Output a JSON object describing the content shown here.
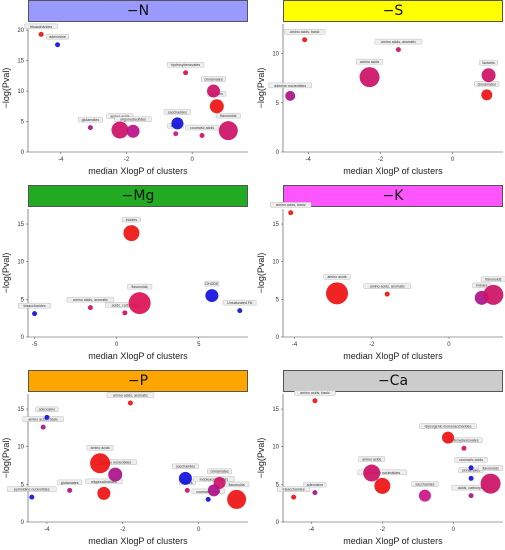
{
  "chart_data": [
    {
      "type": "scatter",
      "title": "−N",
      "strip_color": "#9999ff",
      "xlabel": "median XlogP of clusters",
      "ylabel": "−log(Pval)",
      "xlim": [
        -5.0,
        1.7
      ],
      "ylim": [
        0,
        21
      ],
      "xticks": [
        -4,
        -2,
        0
      ],
      "yticks": [
        0,
        5,
        10,
        15,
        20
      ],
      "points": [
        {
          "x": -4.6,
          "y": 19.3,
          "r": 2.5,
          "color": "#ee1111",
          "label": "trisaccharides"
        },
        {
          "x": -4.1,
          "y": 17.6,
          "r": 2.5,
          "color": "#1111dd",
          "label": "adenosine"
        },
        {
          "x": -0.2,
          "y": 13.0,
          "r": 2.5,
          "color": "#dd1144",
          "label": "hydroxybenzoates"
        },
        {
          "x": 0.65,
          "y": 10.0,
          "r": 6.5,
          "color": "#cc1166",
          "label": "cinnamates"
        },
        {
          "x": 0.75,
          "y": 7.5,
          "r": 7,
          "color": "#ee1111",
          "label": "lactams"
        },
        {
          "x": -3.1,
          "y": 4.0,
          "r": 2.5,
          "color": "#aa1188",
          "label": "glutamates"
        },
        {
          "x": -2.2,
          "y": 3.6,
          "r": 8.5,
          "color": "#cc1166",
          "label": "amino acids"
        },
        {
          "x": -1.8,
          "y": 3.4,
          "r": 6.5,
          "color": "#bb1188",
          "label": "oligonucleotides"
        },
        {
          "x": -0.45,
          "y": 4.7,
          "r": 6,
          "color": "#1111dd",
          "label": "saccharides"
        },
        {
          "x": -0.5,
          "y": 3.0,
          "r": 2.5,
          "color": "#cc1188",
          "label": "azoles"
        },
        {
          "x": 0.3,
          "y": 2.7,
          "r": 2.5,
          "color": "#cc1166",
          "label": "coumaric acids"
        },
        {
          "x": 1.1,
          "y": 3.5,
          "r": 9.5,
          "color": "#cc1166",
          "label": "flavonoids"
        }
      ]
    },
    {
      "type": "scatter",
      "title": "−S",
      "strip_color": "#ffff00",
      "xlabel": "median XlogP of clusters",
      "ylabel": "−log(Pval)",
      "xlim": [
        -4.7,
        1.4
      ],
      "ylim": [
        0,
        13
      ],
      "xticks": [
        -4,
        -2,
        0
      ],
      "yticks": [
        0,
        5,
        10
      ],
      "points": [
        {
          "x": -4.1,
          "y": 11.4,
          "r": 2.5,
          "color": "#ee1111",
          "label": "amino acids, basic"
        },
        {
          "x": -1.5,
          "y": 10.4,
          "r": 2.5,
          "color": "#cc1166",
          "label": "amino acids, aromatic"
        },
        {
          "x": -4.5,
          "y": 5.7,
          "r": 5,
          "color": "#aa1188",
          "label": "adenine nucleotides"
        },
        {
          "x": -2.3,
          "y": 7.6,
          "r": 10,
          "color": "#cc1166",
          "label": "amino acids"
        },
        {
          "x": 1.0,
          "y": 7.8,
          "r": 7,
          "color": "#cc1166",
          "label": "lactams"
        },
        {
          "x": 0.95,
          "y": 5.8,
          "r": 5.5,
          "color": "#ee1111",
          "label": "cinnamates"
        }
      ]
    },
    {
      "type": "scatter",
      "title": "−Mg",
      "strip_color": "#22aa22",
      "xlabel": "median XlogP of clusters",
      "ylabel": "−log(Pval)",
      "xlim": [
        -5.4,
        8.0
      ],
      "ylim": [
        0,
        17
      ],
      "xticks": [
        -5,
        0,
        5
      ],
      "yticks": [
        0,
        5,
        10,
        15
      ],
      "points": [
        {
          "x": 0.9,
          "y": 13.8,
          "r": 8,
          "color": "#ee1111",
          "label": "indoles"
        },
        {
          "x": 5.8,
          "y": 5.5,
          "r": 6.5,
          "color": "#1111dd",
          "label": "DHODE"
        },
        {
          "x": 7.5,
          "y": 3.5,
          "r": 2.5,
          "color": "#1111dd",
          "label": "Unsaturated FA"
        },
        {
          "x": -5.0,
          "y": 3.1,
          "r": 2.5,
          "color": "#1111dd",
          "label": "trisaccharides"
        },
        {
          "x": -1.6,
          "y": 3.9,
          "r": 2.5,
          "color": "#cc1166",
          "label": "amino acids, aromatic"
        },
        {
          "x": 1.4,
          "y": 4.5,
          "r": 11,
          "color": "#dd1155",
          "label": "flavonoids"
        },
        {
          "x": 0.5,
          "y": 3.2,
          "r": 2.5,
          "color": "#cc1166",
          "label": "acids, carboxylic"
        }
      ]
    },
    {
      "type": "scatter",
      "title": "−K",
      "strip_color": "#ff55ff",
      "xlabel": "median XlogP of clusters",
      "ylabel": "−log(Pval)",
      "xlim": [
        -4.3,
        1.4
      ],
      "ylim": [
        0,
        17
      ],
      "xticks": [
        -4,
        -2,
        0
      ],
      "yticks": [
        0,
        5,
        10,
        15
      ],
      "points": [
        {
          "x": -4.1,
          "y": 16.5,
          "r": 2.5,
          "color": "#ee1111",
          "label": "amino acids, basic"
        },
        {
          "x": -2.9,
          "y": 5.8,
          "r": 11,
          "color": "#ee1111",
          "label": "amino acids"
        },
        {
          "x": -1.6,
          "y": 5.7,
          "r": 2.5,
          "color": "#ee1111",
          "label": "amino acids, aromatic"
        },
        {
          "x": 0.85,
          "y": 5.2,
          "r": 7,
          "color": "#aa1188",
          "label": "indoles"
        },
        {
          "x": 1.15,
          "y": 5.6,
          "r": 10,
          "color": "#cc1166",
          "label": "flavonoids"
        }
      ]
    },
    {
      "type": "scatter",
      "title": "−P",
      "strip_color": "#ffa500",
      "xlabel": "median XlogP of clusters",
      "ylabel": "−log(Pval)",
      "xlim": [
        -4.5,
        1.3
      ],
      "ylim": [
        0,
        17
      ],
      "xticks": [
        -4,
        -2,
        0
      ],
      "yticks": [
        0,
        5,
        10,
        15
      ],
      "points": [
        {
          "x": -1.8,
          "y": 15.8,
          "r": 2.5,
          "color": "#ee1111",
          "label": "amino acids, aromatic"
        },
        {
          "x": -4.0,
          "y": 13.9,
          "r": 2.5,
          "color": "#1111dd",
          "label": "adenosine"
        },
        {
          "x": -4.1,
          "y": 12.6,
          "r": 2.5,
          "color": "#aa1188",
          "label": "amino acids, basic"
        },
        {
          "x": -2.6,
          "y": 7.8,
          "r": 10,
          "color": "#ee1111",
          "label": "amino acids"
        },
        {
          "x": -2.2,
          "y": 6.3,
          "r": 7,
          "color": "#aa1188",
          "label": "adenine nucleotides"
        },
        {
          "x": -0.35,
          "y": 5.8,
          "r": 6.5,
          "color": "#1111dd",
          "label": "saccharides"
        },
        {
          "x": -0.3,
          "y": 4.2,
          "r": 2.5,
          "color": "#cc1166",
          "label": "azoles"
        },
        {
          "x": 0.55,
          "y": 5.2,
          "r": 6,
          "color": "#cc1166",
          "label": "cinnamates"
        },
        {
          "x": 0.4,
          "y": 4.2,
          "r": 6,
          "color": "#aa1188",
          "label": "indoleacetic acids"
        },
        {
          "x": 0.25,
          "y": 3.0,
          "r": 2.5,
          "color": "#1111dd",
          "label": "coumaric acids"
        },
        {
          "x": 1.0,
          "y": 3.0,
          "r": 9.5,
          "color": "#ee1111",
          "label": "flavonoids"
        },
        {
          "x": -4.4,
          "y": 3.3,
          "r": 2.5,
          "color": "#1111dd",
          "label": "pyrimidine nucleotides"
        },
        {
          "x": -3.4,
          "y": 4.2,
          "r": 2.5,
          "color": "#aa1188",
          "label": "glutamates"
        },
        {
          "x": -2.5,
          "y": 3.8,
          "r": 6.5,
          "color": "#ee1111",
          "label": "oligonucleotides"
        }
      ]
    },
    {
      "type": "scatter",
      "title": "−Ca",
      "strip_color": "#cccccc",
      "xlabel": "median XlogP of clusters",
      "ylabel": "−log(Pval)",
      "xlim": [
        -4.8,
        1.4
      ],
      "ylim": [
        0,
        17
      ],
      "xticks": [
        -4,
        -2,
        0
      ],
      "yticks": [
        0,
        5,
        10,
        15
      ],
      "points": [
        {
          "x": -3.9,
          "y": 16.1,
          "r": 2.5,
          "color": "#ee1111",
          "label": "amino acids, basic"
        },
        {
          "x": -0.15,
          "y": 11.2,
          "r": 6,
          "color": "#ee1111",
          "label": "Glycogenic monosaccharides"
        },
        {
          "x": 0.3,
          "y": 9.8,
          "r": 2.5,
          "color": "#cc1166",
          "label": "hydroxybenzoates"
        },
        {
          "x": -2.3,
          "y": 6.5,
          "r": 8.5,
          "color": "#cc1166",
          "label": "amino acids"
        },
        {
          "x": -2.0,
          "y": 4.8,
          "r": 8,
          "color": "#ee1111",
          "label": "pyrimidine nucleotides"
        },
        {
          "x": -3.9,
          "y": 3.9,
          "r": 2.5,
          "color": "#aa1188",
          "label": "adenosine"
        },
        {
          "x": -4.5,
          "y": 3.3,
          "r": 2.5,
          "color": "#ee1111",
          "label": "trisaccharides"
        },
        {
          "x": -0.8,
          "y": 3.5,
          "r": 6,
          "color": "#cc1188",
          "label": "saccharides"
        },
        {
          "x": 0.5,
          "y": 7.2,
          "r": 2.5,
          "color": "#1111dd",
          "label": "coumaric acids"
        },
        {
          "x": 0.5,
          "y": 5.8,
          "r": 2.5,
          "color": "#1111dd",
          "label": "cinnamates"
        },
        {
          "x": 0.5,
          "y": 3.5,
          "r": 2.5,
          "color": "#aa1188",
          "label": "acids, carboxylic"
        },
        {
          "x": 1.05,
          "y": 5.1,
          "r": 10,
          "color": "#cc1166",
          "label": "flavonoids"
        }
      ]
    }
  ]
}
